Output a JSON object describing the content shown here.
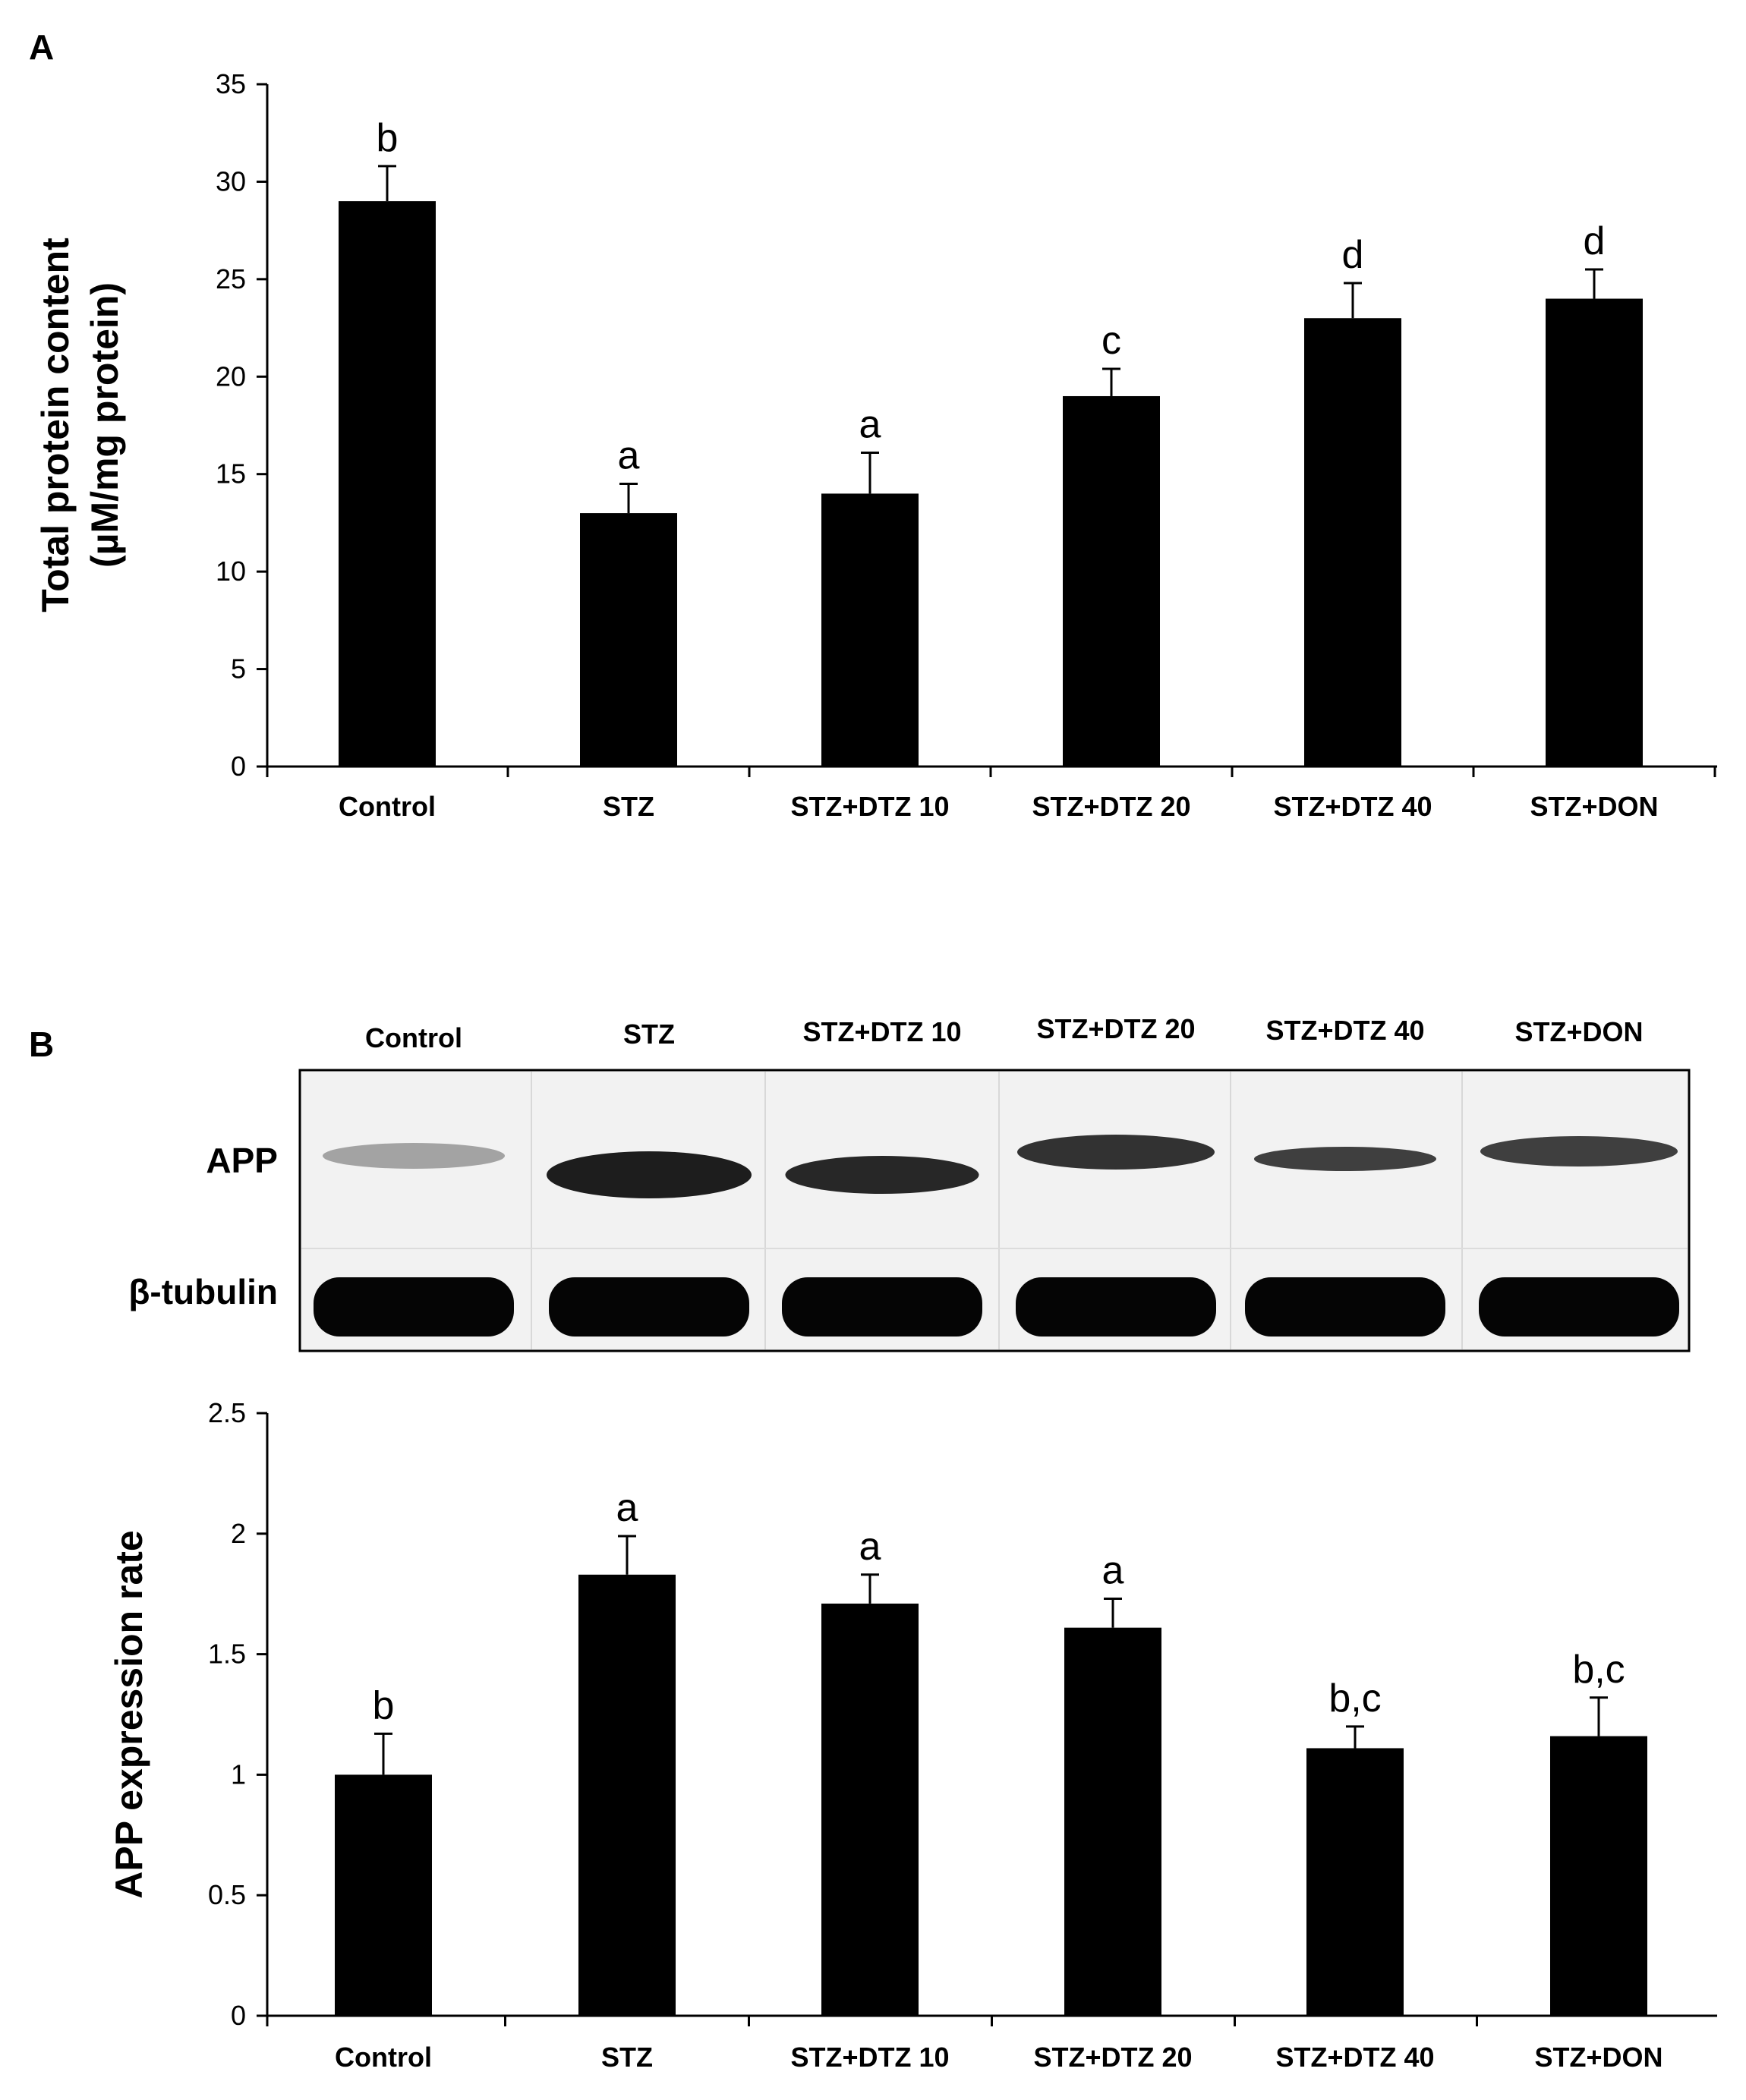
{
  "panels": {
    "a": "A",
    "b": "B"
  },
  "blot": {
    "lanes": [
      "Control",
      "STZ",
      "STZ+DTZ 10",
      "STZ+DTZ 20",
      "STZ+DTZ 40",
      "STZ+DON"
    ],
    "rows": [
      "APP",
      "β-tubulin"
    ]
  },
  "chart_data": [
    {
      "type": "bar",
      "categories": [
        "Control",
        "STZ",
        "STZ+DTZ 10",
        "STZ+DTZ 20",
        "STZ+DTZ 40",
        "STZ+DON"
      ],
      "values": [
        29,
        13,
        14,
        19,
        23,
        24
      ],
      "errors": [
        1.8,
        1.5,
        2.1,
        1.4,
        1.8,
        1.5
      ],
      "significance": [
        "b",
        "a",
        "a",
        "c",
        "d",
        "d"
      ],
      "ylabel": [
        "Total protein content",
        "(µM/mg protein)"
      ],
      "ylim": [
        0,
        35
      ],
      "yticks": [
        0,
        5,
        10,
        15,
        20,
        25,
        30,
        35
      ],
      "tick_labels": [
        "0",
        "5",
        "10",
        "15",
        "20",
        "25",
        "30",
        "35"
      ],
      "bar_color": "#000000",
      "grid": false
    },
    {
      "type": "bar",
      "categories": [
        "Control",
        "STZ",
        "STZ+DTZ 10",
        "STZ+DTZ 20",
        "STZ+DTZ 40",
        "STZ+DON"
      ],
      "values": [
        1.0,
        1.83,
        1.71,
        1.61,
        1.11,
        1.16
      ],
      "errors": [
        0.17,
        0.16,
        0.12,
        0.12,
        0.09,
        0.16
      ],
      "significance": [
        "b",
        "a",
        "a",
        "a",
        "b,c",
        "b,c"
      ],
      "ylabel": [
        "APP expression rate"
      ],
      "ylim": [
        0,
        2.5
      ],
      "yticks": [
        0,
        0.5,
        1,
        1.5,
        2,
        2.5
      ],
      "tick_labels": [
        "0",
        "0.5",
        "1",
        "1.5",
        "2",
        "2.5"
      ],
      "bar_color": "#000000",
      "grid": false
    }
  ]
}
